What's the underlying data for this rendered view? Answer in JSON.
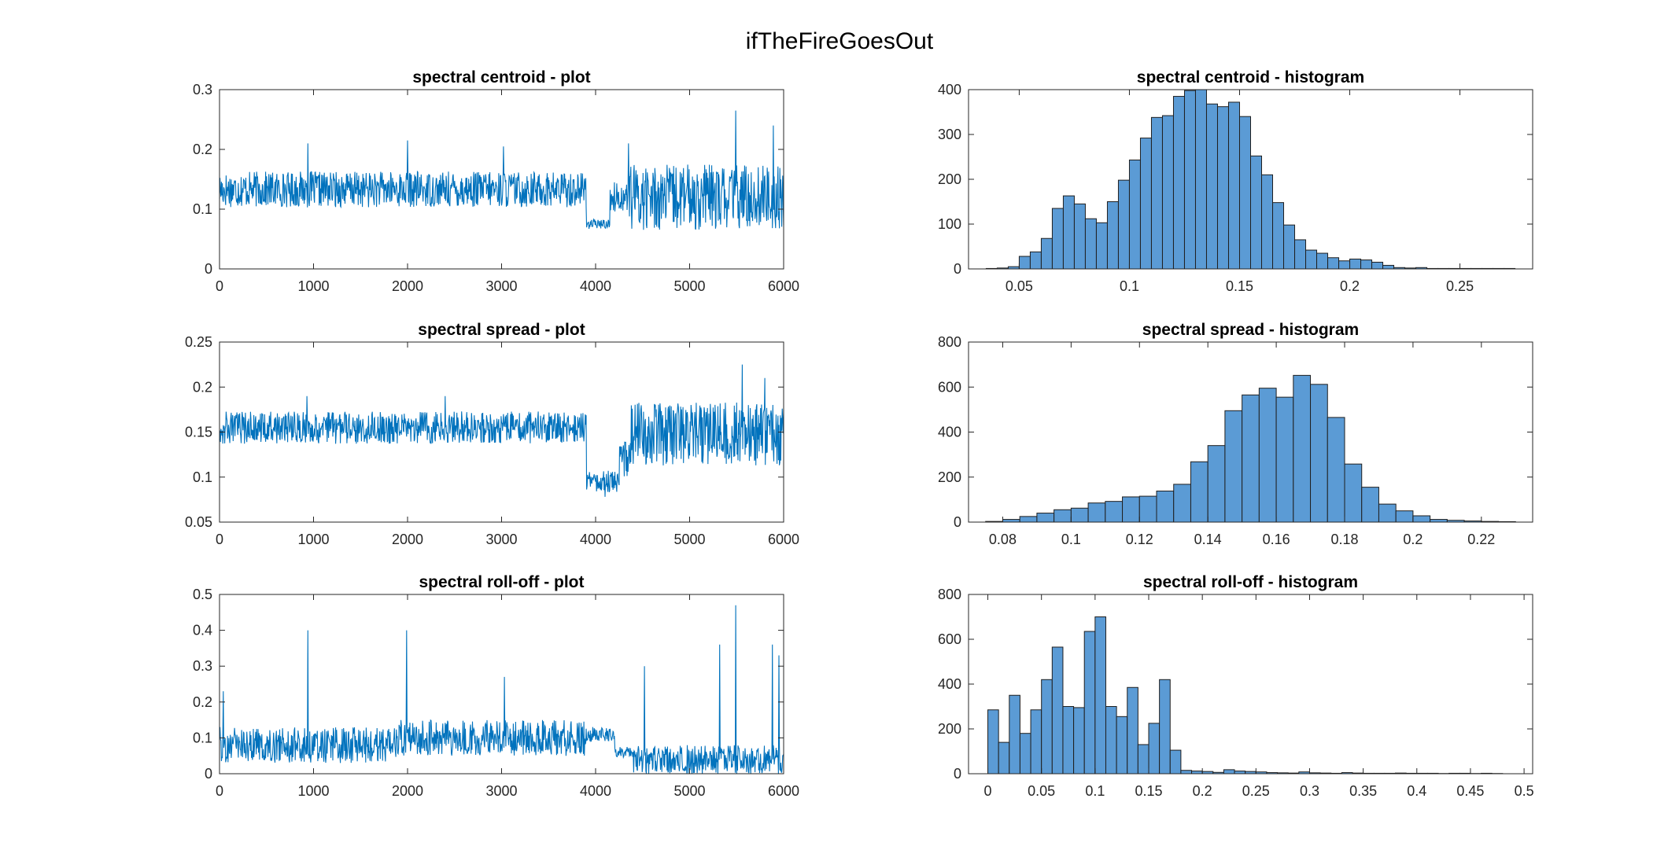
{
  "figure": {
    "title": "ifTheFireGoesOut"
  },
  "colors": {
    "line": "#0072BD",
    "bar_fill": "#5B9BD5",
    "bar_edge": "#1F1F1F",
    "axes": "#262626"
  },
  "chart_data": [
    {
      "type": "line",
      "title": "spectral centroid - plot",
      "xlabel": "",
      "ylabel": "",
      "xlim": [
        0,
        6000
      ],
      "ylim": [
        0,
        0.3
      ],
      "xticks": [
        0,
        1000,
        2000,
        3000,
        4000,
        5000,
        6000
      ],
      "xtick_labels": [
        "0",
        "1000",
        "2000",
        "3000",
        "4000",
        "5000",
        "6000"
      ],
      "yticks": [
        0,
        0.1,
        0.2,
        0.3
      ],
      "ytick_labels": [
        "0",
        "0.1",
        "0.2",
        "0.3"
      ],
      "segments": [
        {
          "x": [
            0,
            3900
          ],
          "center": 0.133,
          "amp": 0.03
        },
        {
          "x": [
            3900,
            4150
          ],
          "center": 0.075,
          "amp": 0.008
        },
        {
          "x": [
            4150,
            4350
          ],
          "center": 0.12,
          "amp": 0.025
        },
        {
          "x": [
            4350,
            6000
          ],
          "center": 0.12,
          "amp": 0.055
        }
      ],
      "peaks": [
        {
          "x": 940,
          "y": 0.21
        },
        {
          "x": 2000,
          "y": 0.215
        },
        {
          "x": 3020,
          "y": 0.205
        },
        {
          "x": 4350,
          "y": 0.21
        },
        {
          "x": 5490,
          "y": 0.265
        },
        {
          "x": 5890,
          "y": 0.24
        }
      ]
    },
    {
      "type": "line",
      "title": "spectral spread - plot",
      "xlabel": "",
      "ylabel": "",
      "xlim": [
        0,
        6000
      ],
      "ylim": [
        0.05,
        0.25
      ],
      "xticks": [
        0,
        1000,
        2000,
        3000,
        4000,
        5000,
        6000
      ],
      "xtick_labels": [
        "0",
        "1000",
        "2000",
        "3000",
        "4000",
        "5000",
        "6000"
      ],
      "yticks": [
        0.05,
        0.1,
        0.15,
        0.2,
        0.25
      ],
      "ytick_labels": [
        "0.05",
        "0.1",
        "0.15",
        "0.2",
        "0.25"
      ],
      "segments": [
        {
          "x": [
            0,
            3900
          ],
          "center": 0.155,
          "amp": 0.018
        },
        {
          "x": [
            3900,
            4250
          ],
          "center": 0.095,
          "amp": 0.012
        },
        {
          "x": [
            4250,
            4350
          ],
          "center": 0.12,
          "amp": 0.02
        },
        {
          "x": [
            4350,
            6000
          ],
          "center": 0.148,
          "amp": 0.035
        }
      ],
      "peaks": [
        {
          "x": 930,
          "y": 0.19
        },
        {
          "x": 2400,
          "y": 0.19
        },
        {
          "x": 5560,
          "y": 0.225
        },
        {
          "x": 5800,
          "y": 0.21
        },
        {
          "x": 4100,
          "y": 0.078
        }
      ]
    },
    {
      "type": "line",
      "title": "spectral roll-off - plot",
      "xlabel": "",
      "ylabel": "",
      "xlim": [
        0,
        6000
      ],
      "ylim": [
        0,
        0.5
      ],
      "xticks": [
        0,
        1000,
        2000,
        3000,
        4000,
        5000,
        6000
      ],
      "xtick_labels": [
        "0",
        "1000",
        "2000",
        "3000",
        "4000",
        "5000",
        "6000"
      ],
      "yticks": [
        0,
        0.1,
        0.2,
        0.3,
        0.4,
        0.5
      ],
      "ytick_labels": [
        "0",
        "0.1",
        "0.2",
        "0.3",
        "0.4",
        "0.5"
      ],
      "segments": [
        {
          "x": [
            0,
            1900
          ],
          "center": 0.08,
          "amp": 0.05
        },
        {
          "x": [
            1900,
            3900
          ],
          "center": 0.1,
          "amp": 0.05
        },
        {
          "x": [
            3900,
            4200
          ],
          "center": 0.11,
          "amp": 0.02
        },
        {
          "x": [
            4200,
            4400
          ],
          "center": 0.06,
          "amp": 0.015
        },
        {
          "x": [
            4400,
            6000
          ],
          "center": 0.04,
          "amp": 0.04
        }
      ],
      "peaks": [
        {
          "x": 40,
          "y": 0.23
        },
        {
          "x": 940,
          "y": 0.4
        },
        {
          "x": 1990,
          "y": 0.4
        },
        {
          "x": 3030,
          "y": 0.27
        },
        {
          "x": 4520,
          "y": 0.3
        },
        {
          "x": 5490,
          "y": 0.47
        },
        {
          "x": 5320,
          "y": 0.36
        },
        {
          "x": 5880,
          "y": 0.36
        },
        {
          "x": 5950,
          "y": 0.33
        }
      ]
    },
    {
      "type": "bar",
      "title": "spectral centroid - histogram",
      "xlabel": "",
      "ylabel": "",
      "xlim": [
        0.027,
        0.283
      ],
      "ylim": [
        0,
        400
      ],
      "xticks": [
        0.05,
        0.1,
        0.15,
        0.2,
        0.25
      ],
      "xtick_labels": [
        "0.05",
        "0.1",
        "0.15",
        "0.2",
        "0.25"
      ],
      "yticks": [
        0,
        100,
        200,
        300,
        400
      ],
      "ytick_labels": [
        "0",
        "100",
        "200",
        "300",
        "400"
      ],
      "bin_start": 0.035,
      "bin_width": 0.005,
      "counts": [
        1,
        2,
        5,
        28,
        38,
        68,
        135,
        163,
        145,
        112,
        103,
        150,
        198,
        243,
        292,
        338,
        342,
        385,
        398,
        400,
        368,
        362,
        372,
        340,
        252,
        210,
        148,
        98,
        65,
        42,
        35,
        25,
        18,
        22,
        20,
        15,
        8,
        3,
        2,
        3,
        1,
        1,
        1,
        1,
        1,
        1,
        1,
        1
      ]
    },
    {
      "type": "bar",
      "title": "spectral spread - histogram",
      "xlabel": "",
      "ylabel": "",
      "xlim": [
        0.07,
        0.235
      ],
      "ylim": [
        0,
        800
      ],
      "xticks": [
        0.08,
        0.1,
        0.12,
        0.14,
        0.16,
        0.18,
        0.2,
        0.22
      ],
      "xtick_labels": [
        "0.08",
        "0.1",
        "0.12",
        "0.14",
        "0.16",
        "0.18",
        "0.2",
        "0.22"
      ],
      "yticks": [
        0,
        200,
        400,
        600,
        800
      ],
      "ytick_labels": [
        "0",
        "200",
        "400",
        "600",
        "800"
      ],
      "bin_start": 0.075,
      "bin_width": 0.005,
      "counts": [
        3,
        12,
        25,
        40,
        55,
        62,
        85,
        92,
        112,
        115,
        138,
        168,
        268,
        340,
        495,
        565,
        595,
        555,
        652,
        612,
        465,
        258,
        155,
        80,
        50,
        28,
        12,
        8,
        5,
        3,
        2
      ]
    },
    {
      "type": "bar",
      "title": "spectral roll-off - histogram",
      "xlabel": "",
      "ylabel": "",
      "xlim": [
        -0.018,
        0.508
      ],
      "ylim": [
        0,
        800
      ],
      "xticks": [
        0,
        0.05,
        0.1,
        0.15,
        0.2,
        0.25,
        0.3,
        0.35,
        0.4,
        0.45,
        0.5
      ],
      "xtick_labels": [
        "0",
        "0.05",
        "0.1",
        "0.15",
        "0.2",
        "0.25",
        "0.3",
        "0.35",
        "0.4",
        "0.45",
        "0.5"
      ],
      "yticks": [
        0,
        200,
        400,
        600,
        800
      ],
      "ytick_labels": [
        "0",
        "200",
        "400",
        "600",
        "800"
      ],
      "bin_start": 0,
      "bin_width": 0.01,
      "counts": [
        285,
        140,
        350,
        180,
        285,
        420,
        565,
        300,
        295,
        635,
        700,
        300,
        255,
        385,
        130,
        225,
        420,
        105,
        15,
        12,
        10,
        6,
        18,
        12,
        10,
        8,
        5,
        4,
        3,
        8,
        4,
        3,
        2,
        5,
        3,
        2,
        2,
        2,
        3,
        2,
        2,
        2,
        1,
        2,
        2,
        1,
        2,
        1
      ]
    }
  ]
}
